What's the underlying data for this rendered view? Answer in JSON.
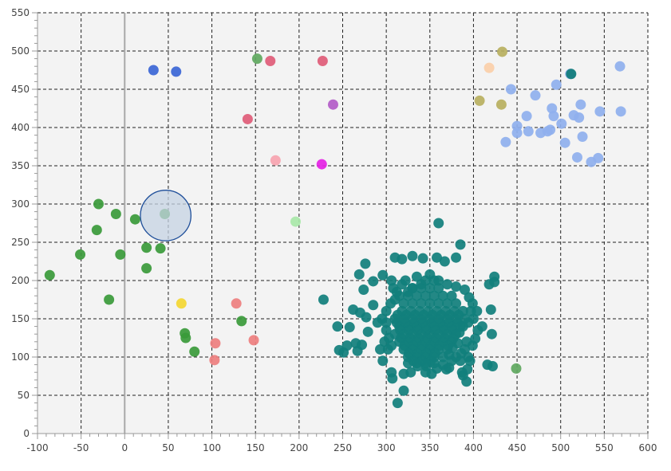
{
  "chart_data": {
    "type": "scatter",
    "title": "",
    "xlabel": "",
    "ylabel": "",
    "xlim": [
      -100,
      600
    ],
    "ylim": [
      0,
      550
    ],
    "x_ticks": [
      "-100",
      "-50",
      "0",
      "50",
      "100",
      "150",
      "200",
      "250",
      "300",
      "350",
      "400",
      "450",
      "500",
      "550",
      "600"
    ],
    "y_ticks": [
      "0",
      "50",
      "100",
      "150",
      "200",
      "250",
      "300",
      "350",
      "400",
      "450",
      "500",
      "550"
    ],
    "grid": true,
    "grid_style": "dashed",
    "background_color": "#f3f3f3",
    "zero_line": {
      "axis": "x",
      "value": 0,
      "color": "#a8a8a8"
    },
    "highlight": {
      "x": 47,
      "y": 285,
      "r_data": 29,
      "fill": "#c5d3e3",
      "stroke": "#1f4f9a"
    },
    "series": [
      {
        "color": "#117f7c",
        "points": [
          [
            318,
            228
          ],
          [
            330,
            232
          ],
          [
            342,
            229
          ],
          [
            358,
            230
          ],
          [
            367,
            225
          ],
          [
            380,
            230
          ],
          [
            385,
            247
          ],
          [
            360,
            275
          ],
          [
            276,
            222
          ],
          [
            269,
            208
          ],
          [
            296,
            207
          ],
          [
            274,
            188
          ],
          [
            285,
            199
          ],
          [
            306,
            200
          ],
          [
            262,
            162
          ],
          [
            270,
            158
          ],
          [
            277,
            152
          ],
          [
            285,
            168
          ],
          [
            279,
            133
          ],
          [
            300,
            145
          ],
          [
            258,
            139
          ],
          [
            244,
            140
          ],
          [
            251,
            106
          ],
          [
            265,
            118
          ],
          [
            272,
            116
          ],
          [
            255,
            115
          ],
          [
            246,
            109
          ],
          [
            267,
            108
          ],
          [
            293,
            110
          ],
          [
            302,
            110
          ],
          [
            296,
            95
          ],
          [
            306,
            80
          ],
          [
            307,
            72
          ],
          [
            320,
            78
          ],
          [
            328,
            80
          ],
          [
            320,
            56
          ],
          [
            313,
            40
          ],
          [
            345,
            80
          ],
          [
            352,
            78
          ],
          [
            358,
            85
          ],
          [
            369,
            84
          ],
          [
            372,
            86
          ],
          [
            387,
            80
          ],
          [
            388,
            76
          ],
          [
            392,
            68
          ],
          [
            393,
            84
          ],
          [
            399,
            115
          ],
          [
            402,
            124
          ],
          [
            405,
            135
          ],
          [
            400,
            150
          ],
          [
            404,
            160
          ],
          [
            410,
            140
          ],
          [
            416,
            90
          ],
          [
            422,
            88
          ],
          [
            421,
            130
          ],
          [
            420,
            162
          ],
          [
            418,
            195
          ],
          [
            424,
            205
          ],
          [
            424,
            198
          ],
          [
            228,
            175
          ],
          [
            310,
            230
          ],
          [
            335,
            205
          ],
          [
            350,
            208
          ],
          [
            360,
            200
          ],
          [
            370,
            195
          ],
          [
            380,
            192
          ],
          [
            390,
            188
          ],
          [
            395,
            178
          ],
          [
            340,
            195
          ],
          [
            330,
            190
          ],
          [
            325,
            185
          ],
          [
            315,
            180
          ],
          [
            310,
            175
          ],
          [
            305,
            170
          ],
          [
            300,
            160
          ],
          [
            295,
            150
          ],
          [
            290,
            145
          ],
          [
            310,
            150
          ],
          [
            320,
            150
          ],
          [
            330,
            150
          ],
          [
            340,
            150
          ],
          [
            350,
            150
          ],
          [
            360,
            150
          ],
          [
            370,
            150
          ],
          [
            380,
            150
          ],
          [
            390,
            150
          ],
          [
            315,
            140
          ],
          [
            325,
            140
          ],
          [
            335,
            140
          ],
          [
            345,
            140
          ],
          [
            355,
            140
          ],
          [
            365,
            140
          ],
          [
            375,
            140
          ],
          [
            385,
            140
          ],
          [
            310,
            130
          ],
          [
            320,
            130
          ],
          [
            330,
            130
          ],
          [
            340,
            130
          ],
          [
            350,
            130
          ],
          [
            360,
            130
          ],
          [
            370,
            130
          ],
          [
            380,
            130
          ],
          [
            315,
            120
          ],
          [
            325,
            120
          ],
          [
            335,
            120
          ],
          [
            345,
            120
          ],
          [
            355,
            120
          ],
          [
            365,
            120
          ],
          [
            375,
            120
          ],
          [
            320,
            110
          ],
          [
            330,
            110
          ],
          [
            340,
            110
          ],
          [
            350,
            110
          ],
          [
            360,
            110
          ],
          [
            370,
            110
          ],
          [
            325,
            100
          ],
          [
            335,
            100
          ],
          [
            345,
            100
          ],
          [
            355,
            100
          ],
          [
            365,
            100
          ],
          [
            318,
            160
          ],
          [
            328,
            160
          ],
          [
            338,
            160
          ],
          [
            348,
            160
          ],
          [
            358,
            160
          ],
          [
            368,
            160
          ],
          [
            378,
            160
          ],
          [
            388,
            160
          ],
          [
            320,
            170
          ],
          [
            330,
            170
          ],
          [
            340,
            170
          ],
          [
            350,
            170
          ],
          [
            360,
            170
          ],
          [
            370,
            170
          ],
          [
            380,
            170
          ],
          [
            325,
            180
          ],
          [
            335,
            180
          ],
          [
            345,
            180
          ],
          [
            355,
            180
          ],
          [
            365,
            180
          ],
          [
            375,
            180
          ],
          [
            330,
            190
          ],
          [
            340,
            190
          ],
          [
            350,
            190
          ],
          [
            360,
            190
          ],
          [
            345,
            200
          ],
          [
            355,
            200
          ],
          [
            312,
            145
          ],
          [
            322,
            145
          ],
          [
            332,
            145
          ],
          [
            342,
            145
          ],
          [
            352,
            145
          ],
          [
            362,
            145
          ],
          [
            372,
            145
          ],
          [
            382,
            145
          ],
          [
            313,
            155
          ],
          [
            323,
            155
          ],
          [
            333,
            155
          ],
          [
            343,
            155
          ],
          [
            353,
            155
          ],
          [
            363,
            155
          ],
          [
            373,
            155
          ],
          [
            383,
            155
          ],
          [
            316,
            135
          ],
          [
            326,
            135
          ],
          [
            336,
            135
          ],
          [
            346,
            135
          ],
          [
            356,
            135
          ],
          [
            366,
            135
          ],
          [
            376,
            135
          ],
          [
            317,
            125
          ],
          [
            327,
            125
          ],
          [
            337,
            125
          ],
          [
            347,
            125
          ],
          [
            357,
            125
          ],
          [
            367,
            125
          ],
          [
            377,
            125
          ],
          [
            321,
            115
          ],
          [
            331,
            115
          ],
          [
            341,
            115
          ],
          [
            351,
            115
          ],
          [
            361,
            115
          ],
          [
            371,
            115
          ],
          [
            326,
            105
          ],
          [
            336,
            105
          ],
          [
            346,
            105
          ],
          [
            356,
            105
          ],
          [
            331,
            95
          ],
          [
            341,
            95
          ],
          [
            351,
            95
          ],
          [
            336,
            88
          ],
          [
            346,
            88
          ],
          [
            298,
            120
          ],
          [
            300,
            135
          ],
          [
            303,
            125
          ],
          [
            306,
            115
          ],
          [
            308,
            190
          ],
          [
            312,
            185
          ],
          [
            318,
            195
          ],
          [
            322,
            200
          ],
          [
            390,
            110
          ],
          [
            392,
            120
          ],
          [
            394,
            100
          ],
          [
            396,
            95
          ],
          [
            380,
            100
          ],
          [
            385,
            95
          ],
          [
            375,
            95
          ],
          [
            365,
            90
          ],
          [
            355,
            92
          ],
          [
            345,
            92
          ],
          [
            335,
            92
          ],
          [
            325,
            92
          ],
          [
            382,
            118
          ],
          [
            386,
            105
          ],
          [
            384,
            132
          ],
          [
            388,
            140
          ],
          [
            394,
            145
          ],
          [
            397,
            160
          ],
          [
            399,
            170
          ],
          [
            376,
            112
          ],
          [
            372,
            103
          ]
        ]
      },
      {
        "color": "#8fb0ee",
        "points": [
          [
            568,
            480
          ],
          [
            569,
            421
          ],
          [
            495,
            456
          ],
          [
            511,
            470
          ],
          [
            443,
            450
          ],
          [
            471,
            442
          ],
          [
            450,
            402
          ],
          [
            461,
            415
          ],
          [
            450,
            393
          ],
          [
            463,
            395
          ],
          [
            477,
            393
          ],
          [
            485,
            395
          ],
          [
            490,
            425
          ],
          [
            492,
            415
          ],
          [
            523,
            430
          ],
          [
            521,
            413
          ],
          [
            515,
            416
          ],
          [
            501,
            405
          ],
          [
            525,
            388
          ],
          [
            505,
            380
          ],
          [
            488,
            397
          ],
          [
            437,
            381
          ],
          [
            519,
            361
          ],
          [
            535,
            355
          ],
          [
            543,
            360
          ],
          [
            545,
            421
          ]
        ]
      },
      {
        "color": "#3a9a3a",
        "points": [
          [
            -30,
            300
          ],
          [
            -10,
            287
          ],
          [
            12,
            280
          ],
          [
            -32,
            266
          ],
          [
            -51,
            234
          ],
          [
            -5,
            234
          ],
          [
            -86,
            207
          ],
          [
            25,
            243
          ],
          [
            41,
            242
          ],
          [
            25,
            216
          ],
          [
            -18,
            175
          ],
          [
            69,
            131
          ],
          [
            70,
            125
          ],
          [
            80,
            107
          ],
          [
            134,
            147
          ],
          [
            46,
            287
          ]
        ]
      },
      {
        "color": "#5fa85f",
        "points": [
          [
            152,
            490
          ],
          [
            449,
            85
          ]
        ]
      },
      {
        "color": "#3b66d6",
        "points": [
          [
            33,
            475
          ],
          [
            59,
            473
          ]
        ]
      },
      {
        "color": "#e05c78",
        "points": [
          [
            167,
            487
          ],
          [
            227,
            487
          ],
          [
            141,
            411
          ]
        ]
      },
      {
        "color": "#b35cc8",
        "points": [
          [
            239,
            430
          ]
        ]
      },
      {
        "color": "#f7a4b0",
        "points": [
          [
            173,
            357
          ]
        ]
      },
      {
        "color": "#e523e5",
        "points": [
          [
            226,
            352
          ]
        ]
      },
      {
        "color": "#a9e8a9",
        "points": [
          [
            196,
            277
          ]
        ]
      },
      {
        "color": "#f4d732",
        "points": [
          [
            65,
            170
          ]
        ]
      },
      {
        "color": "#ee7f7f",
        "points": [
          [
            128,
            170
          ],
          [
            148,
            122
          ],
          [
            104,
            118
          ],
          [
            103,
            96
          ]
        ]
      },
      {
        "color": "#b8b060",
        "points": [
          [
            433,
            499
          ],
          [
            432,
            430
          ],
          [
            407,
            435
          ]
        ]
      },
      {
        "color": "#fbcfa9",
        "points": [
          [
            418,
            478
          ]
        ]
      },
      {
        "color": "#0f7c78",
        "points": [
          [
            512,
            470
          ]
        ]
      }
    ]
  }
}
